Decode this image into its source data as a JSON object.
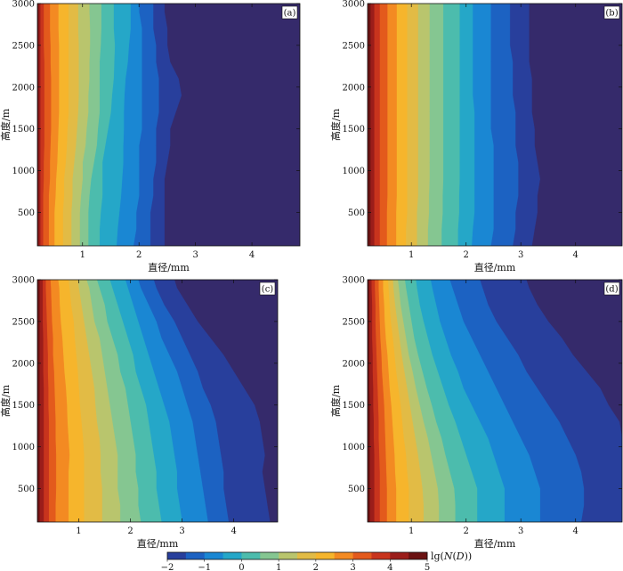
{
  "colors": [
    "#352a6b",
    "#283f9c",
    "#1c62c2",
    "#1a87d3",
    "#25a7c8",
    "#4cbcad",
    "#85c691",
    "#b9c56d",
    "#e2bb45",
    "#f6b52c",
    "#f38a22",
    "#e35a1c",
    "#c8341d",
    "#9b1d1a",
    "#6b1212"
  ],
  "chart_data": {
    "type": "heatmap",
    "xlabel": "直径/mm",
    "ylabel": "高度/m",
    "xlim": [
      0.2,
      4.85
    ],
    "ylim": [
      100,
      3000
    ],
    "xticks": [
      "1",
      "2",
      "3",
      "4"
    ],
    "yticks": [
      "500",
      "1000",
      "1500",
      "2000",
      "2500",
      "3000"
    ],
    "heights": [
      100,
      300,
      500,
      700,
      900,
      1100,
      1300,
      1500,
      1700,
      1900,
      2100,
      2300,
      2500,
      2700,
      2900,
      3000
    ],
    "panels": [
      {
        "label": "(a)",
        "contour_levels": [
          -2,
          -1.5,
          -1,
          -0.5,
          0,
          0.5,
          1,
          1.5,
          2,
          2.5,
          3,
          3.5,
          4,
          4.5
        ],
        "contour_diameters": [
          [
            2.45,
            2.45,
            2.45,
            2.45,
            2.45,
            2.5,
            2.55,
            2.55,
            2.65,
            2.75,
            2.7,
            2.55,
            2.5,
            2.5,
            2.45,
            2.45
          ],
          [
            2.2,
            2.2,
            2.2,
            2.25,
            2.25,
            2.3,
            2.3,
            2.3,
            2.35,
            2.35,
            2.35,
            2.3,
            2.3,
            2.25,
            2.25,
            2.25
          ],
          [
            1.9,
            1.95,
            1.95,
            2.0,
            2.0,
            2.0,
            2.0,
            2.05,
            2.05,
            2.05,
            2.05,
            2.05,
            2.05,
            2.05,
            2.0,
            2.0
          ],
          [
            1.6,
            1.62,
            1.65,
            1.68,
            1.7,
            1.72,
            1.72,
            1.73,
            1.73,
            1.74,
            1.76,
            1.8,
            1.82,
            1.85,
            1.85,
            1.85
          ],
          [
            1.3,
            1.3,
            1.32,
            1.35,
            1.35,
            1.35,
            1.4,
            1.45,
            1.5,
            1.52,
            1.55,
            1.56,
            1.57,
            1.55,
            1.55,
            1.55
          ],
          [
            1.1,
            1.1,
            1.1,
            1.12,
            1.15,
            1.2,
            1.25,
            1.27,
            1.3,
            1.3,
            1.3,
            1.3,
            1.32,
            1.33,
            1.33,
            1.33
          ],
          [
            0.95,
            0.95,
            0.95,
            0.97,
            1.0,
            1.0,
            1.05,
            1.07,
            1.1,
            1.1,
            1.12,
            1.12,
            1.13,
            1.13,
            1.12,
            1.12
          ],
          [
            0.8,
            0.8,
            0.8,
            0.82,
            0.82,
            0.85,
            0.88,
            0.9,
            0.92,
            0.93,
            0.93,
            0.93,
            0.93,
            0.92,
            0.92,
            0.92
          ],
          [
            0.65,
            0.65,
            0.65,
            0.67,
            0.67,
            0.7,
            0.72,
            0.73,
            0.75,
            0.75,
            0.75,
            0.75,
            0.75,
            0.75,
            0.75,
            0.75
          ],
          [
            0.5,
            0.5,
            0.5,
            0.52,
            0.53,
            0.55,
            0.56,
            0.57,
            0.58,
            0.58,
            0.58,
            0.58,
            0.58,
            0.57,
            0.57,
            0.57
          ],
          [
            0.4,
            0.4,
            0.4,
            0.4,
            0.42,
            0.42,
            0.43,
            0.44,
            0.44,
            0.44,
            0.44,
            0.43,
            0.43,
            0.42,
            0.42,
            0.42
          ],
          [
            0.3,
            0.3,
            0.3,
            0.3,
            0.31,
            0.31,
            0.32,
            0.32,
            0.32,
            0.32,
            0.32,
            0.32,
            0.31,
            0.31,
            0.31,
            0.31
          ],
          [
            0.25,
            0.25,
            0.25,
            0.25,
            0.25,
            0.25,
            0.25,
            0.25,
            0.25,
            0.25,
            0.25,
            0.25,
            0.25,
            0.25,
            0.25,
            0.25
          ],
          [
            0.22,
            0.22,
            0.22,
            0.22,
            0.22,
            0.22,
            0.22,
            0.22,
            0.22,
            0.22,
            0.22,
            0.22,
            0.22,
            0.22,
            0.22,
            0.22
          ]
        ]
      },
      {
        "label": "(b)",
        "contour_levels": [
          -2,
          -1.5,
          -1,
          -0.5,
          0,
          0.5,
          1,
          1.5,
          2,
          2.5,
          3,
          3.5,
          4,
          4.5
        ],
        "contour_diameters": [
          [
            3.2,
            3.25,
            3.3,
            3.3,
            3.35,
            3.3,
            3.25,
            3.25,
            3.2,
            3.2,
            3.2,
            3.15,
            3.15,
            3.15,
            3.15,
            3.15
          ],
          [
            2.85,
            2.9,
            2.9,
            2.95,
            2.95,
            2.95,
            2.9,
            2.9,
            2.9,
            2.85,
            2.85,
            2.85,
            2.8,
            2.8,
            2.8,
            2.8
          ],
          [
            2.45,
            2.5,
            2.5,
            2.5,
            2.5,
            2.5,
            2.5,
            2.45,
            2.45,
            2.45,
            2.45,
            2.45,
            2.45,
            2.45,
            2.45,
            2.45
          ],
          [
            2.1,
            2.12,
            2.15,
            2.15,
            2.15,
            2.15,
            2.15,
            2.15,
            2.15,
            2.12,
            2.12,
            2.12,
            2.12,
            2.12,
            2.12,
            2.12
          ],
          [
            1.85,
            1.85,
            1.87,
            1.87,
            1.88,
            1.88,
            1.88,
            1.88,
            1.88,
            1.88,
            1.88,
            1.88,
            1.88,
            1.88,
            1.88,
            1.88
          ],
          [
            1.55,
            1.55,
            1.57,
            1.57,
            1.58,
            1.58,
            1.58,
            1.58,
            1.58,
            1.58,
            1.58,
            1.58,
            1.58,
            1.58,
            1.58,
            1.58
          ],
          [
            1.3,
            1.3,
            1.32,
            1.32,
            1.33,
            1.33,
            1.33,
            1.33,
            1.33,
            1.33,
            1.33,
            1.33,
            1.33,
            1.33,
            1.33,
            1.33
          ],
          [
            1.1,
            1.1,
            1.1,
            1.12,
            1.12,
            1.12,
            1.12,
            1.12,
            1.12,
            1.12,
            1.12,
            1.12,
            1.12,
            1.12,
            1.12,
            1.12
          ],
          [
            0.9,
            0.9,
            0.92,
            0.92,
            0.92,
            0.92,
            0.92,
            0.92,
            0.92,
            0.92,
            0.92,
            0.92,
            0.92,
            0.92,
            0.92,
            0.92
          ],
          [
            0.72,
            0.72,
            0.72,
            0.73,
            0.73,
            0.73,
            0.73,
            0.73,
            0.73,
            0.73,
            0.73,
            0.73,
            0.73,
            0.73,
            0.73,
            0.73
          ],
          [
            0.55,
            0.55,
            0.55,
            0.56,
            0.56,
            0.56,
            0.56,
            0.56,
            0.56,
            0.56,
            0.56,
            0.56,
            0.56,
            0.56,
            0.56,
            0.56
          ],
          [
            0.42,
            0.42,
            0.42,
            0.42,
            0.42,
            0.42,
            0.42,
            0.42,
            0.42,
            0.42,
            0.42,
            0.42,
            0.42,
            0.42,
            0.42,
            0.42
          ],
          [
            0.32,
            0.32,
            0.32,
            0.32,
            0.32,
            0.32,
            0.32,
            0.32,
            0.32,
            0.32,
            0.32,
            0.32,
            0.32,
            0.32,
            0.32,
            0.32
          ],
          [
            0.25,
            0.25,
            0.25,
            0.25,
            0.25,
            0.25,
            0.25,
            0.25,
            0.25,
            0.25,
            0.25,
            0.25,
            0.25,
            0.25,
            0.25,
            0.25
          ]
        ]
      },
      {
        "label": "(c)",
        "contour_levels": [
          -2,
          -1.5,
          -1,
          -0.5,
          0,
          0.5,
          1,
          1.5,
          2,
          2.5,
          3,
          3.5,
          4,
          4.5
        ],
        "contour_diameters": [
          [
            4.7,
            4.65,
            4.6,
            4.55,
            4.6,
            4.55,
            4.5,
            4.4,
            4.2,
            4.0,
            3.8,
            3.55,
            3.3,
            3.1,
            2.9,
            2.85
          ],
          [
            3.9,
            3.85,
            3.8,
            3.8,
            3.75,
            3.7,
            3.65,
            3.55,
            3.4,
            3.3,
            3.15,
            3.0,
            2.85,
            2.65,
            2.5,
            2.45
          ],
          [
            3.5,
            3.45,
            3.4,
            3.35,
            3.3,
            3.25,
            3.2,
            3.1,
            3.0,
            2.9,
            2.75,
            2.6,
            2.5,
            2.35,
            2.2,
            2.15
          ],
          [
            3.0,
            2.95,
            2.9,
            2.9,
            2.85,
            2.8,
            2.75,
            2.65,
            2.55,
            2.45,
            2.35,
            2.25,
            2.15,
            2.05,
            1.95,
            1.9
          ],
          [
            2.6,
            2.55,
            2.5,
            2.5,
            2.45,
            2.4,
            2.35,
            2.3,
            2.2,
            2.1,
            2.05,
            1.95,
            1.85,
            1.75,
            1.65,
            1.6
          ],
          [
            2.2,
            2.15,
            2.15,
            2.1,
            2.1,
            2.05,
            2.0,
            1.95,
            1.9,
            1.8,
            1.75,
            1.65,
            1.55,
            1.5,
            1.4,
            1.35
          ],
          [
            1.8,
            1.8,
            1.75,
            1.75,
            1.75,
            1.7,
            1.65,
            1.6,
            1.55,
            1.5,
            1.45,
            1.4,
            1.3,
            1.25,
            1.2,
            1.15
          ],
          [
            1.45,
            1.45,
            1.45,
            1.42,
            1.42,
            1.4,
            1.35,
            1.32,
            1.3,
            1.25,
            1.2,
            1.15,
            1.1,
            1.05,
            1.0,
            0.98
          ],
          [
            1.1,
            1.1,
            1.1,
            1.1,
            1.1,
            1.08,
            1.05,
            1.02,
            1.0,
            0.98,
            0.95,
            0.92,
            0.9,
            0.85,
            0.82,
            0.8
          ],
          [
            0.8,
            0.8,
            0.8,
            0.8,
            0.82,
            0.8,
            0.78,
            0.77,
            0.75,
            0.72,
            0.7,
            0.68,
            0.65,
            0.63,
            0.62,
            0.6
          ],
          [
            0.55,
            0.55,
            0.56,
            0.56,
            0.56,
            0.55,
            0.55,
            0.54,
            0.53,
            0.52,
            0.5,
            0.5,
            0.48,
            0.47,
            0.46,
            0.45
          ],
          [
            0.42,
            0.42,
            0.42,
            0.42,
            0.42,
            0.42,
            0.42,
            0.41,
            0.41,
            0.4,
            0.4,
            0.39,
            0.38,
            0.37,
            0.36,
            0.36
          ],
          [
            0.32,
            0.32,
            0.32,
            0.32,
            0.32,
            0.32,
            0.32,
            0.32,
            0.32,
            0.31,
            0.31,
            0.31,
            0.3,
            0.3,
            0.3,
            0.3
          ],
          [
            0.24,
            0.24,
            0.24,
            0.24,
            0.24,
            0.24,
            0.24,
            0.24,
            0.24,
            0.24,
            0.24,
            0.24,
            0.24,
            0.24,
            0.24,
            0.24
          ]
        ]
      },
      {
        "label": "(d)",
        "contour_levels": [
          -2,
          -1.5,
          -1,
          -0.5,
          0,
          0.5,
          1,
          1.5,
          2,
          2.5,
          3,
          3.5,
          4,
          4.5
        ],
        "contour_diameters": [
          [
            4.85,
            4.85,
            4.85,
            4.85,
            4.85,
            4.85,
            4.8,
            4.6,
            4.45,
            4.2,
            3.95,
            3.75,
            3.5,
            3.3,
            3.15,
            3.1
          ],
          [
            4.1,
            4.15,
            4.15,
            4.1,
            4.0,
            3.85,
            3.7,
            3.5,
            3.3,
            3.1,
            2.95,
            2.75,
            2.55,
            2.4,
            2.3,
            2.25
          ],
          [
            3.35,
            3.35,
            3.35,
            3.25,
            3.15,
            3.0,
            2.85,
            2.7,
            2.55,
            2.4,
            2.25,
            2.1,
            1.95,
            1.85,
            1.75,
            1.7
          ],
          [
            2.7,
            2.7,
            2.7,
            2.6,
            2.5,
            2.4,
            2.25,
            2.1,
            1.95,
            1.85,
            1.72,
            1.62,
            1.52,
            1.45,
            1.38,
            1.35
          ],
          [
            2.2,
            2.2,
            2.2,
            2.1,
            2.0,
            1.9,
            1.8,
            1.68,
            1.58,
            1.48,
            1.38,
            1.3,
            1.22,
            1.15,
            1.1,
            1.08
          ],
          [
            1.8,
            1.8,
            1.78,
            1.7,
            1.62,
            1.55,
            1.45,
            1.37,
            1.28,
            1.2,
            1.12,
            1.05,
            1.0,
            0.95,
            0.9,
            0.88
          ],
          [
            1.5,
            1.5,
            1.48,
            1.42,
            1.36,
            1.3,
            1.22,
            1.15,
            1.08,
            1.02,
            0.95,
            0.9,
            0.85,
            0.8,
            0.77,
            0.75
          ],
          [
            1.22,
            1.22,
            1.2,
            1.16,
            1.12,
            1.07,
            1.02,
            0.97,
            0.92,
            0.87,
            0.82,
            0.78,
            0.74,
            0.7,
            0.67,
            0.66
          ],
          [
            0.95,
            0.95,
            0.95,
            0.92,
            0.9,
            0.86,
            0.83,
            0.8,
            0.76,
            0.72,
            0.69,
            0.66,
            0.62,
            0.6,
            0.58,
            0.57
          ],
          [
            0.72,
            0.72,
            0.72,
            0.7,
            0.69,
            0.67,
            0.65,
            0.63,
            0.6,
            0.58,
            0.56,
            0.53,
            0.51,
            0.5,
            0.48,
            0.48
          ],
          [
            0.55,
            0.55,
            0.55,
            0.54,
            0.53,
            0.52,
            0.51,
            0.5,
            0.48,
            0.46,
            0.45,
            0.43,
            0.42,
            0.41,
            0.4,
            0.4
          ],
          [
            0.42,
            0.42,
            0.42,
            0.42,
            0.41,
            0.4,
            0.4,
            0.39,
            0.38,
            0.37,
            0.36,
            0.35,
            0.34,
            0.34,
            0.33,
            0.33
          ],
          [
            0.32,
            0.32,
            0.32,
            0.32,
            0.32,
            0.31,
            0.31,
            0.3,
            0.3,
            0.29,
            0.29,
            0.28,
            0.28,
            0.28,
            0.27,
            0.27
          ],
          [
            0.24,
            0.24,
            0.24,
            0.24,
            0.24,
            0.24,
            0.24,
            0.24,
            0.23,
            0.23,
            0.23,
            0.23,
            0.23,
            0.23,
            0.23,
            0.23
          ]
        ]
      }
    ],
    "colorbar": {
      "ticks": [
        "−2",
        "−1",
        "0",
        "1",
        "2",
        "3",
        "4",
        "5"
      ],
      "range": [
        -2,
        5
      ],
      "label_prefix": "lg(",
      "label_italic": "N",
      "label_mid": "(",
      "label_italic2": "D",
      "label_suffix": "))"
    }
  }
}
